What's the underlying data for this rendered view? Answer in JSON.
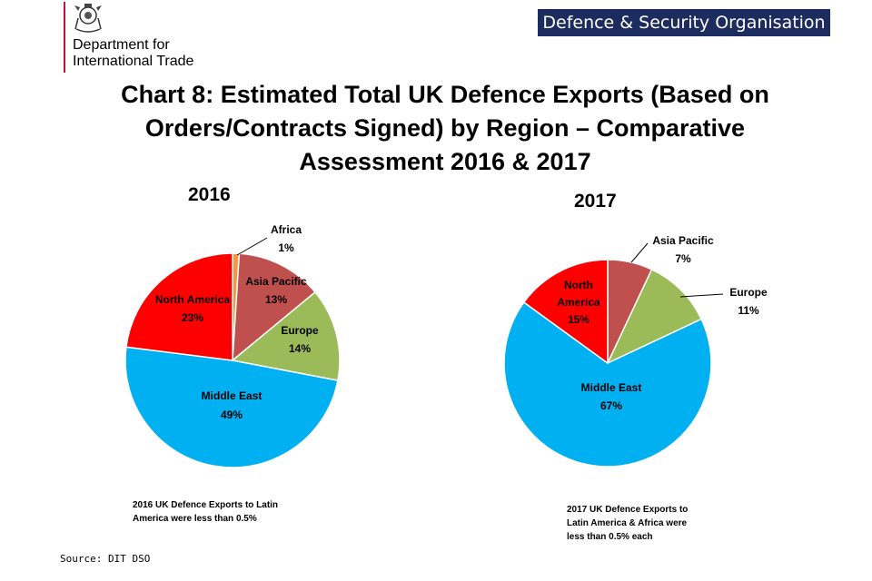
{
  "header": {
    "department": "Department for\nInternational Trade",
    "organisation": "Defence & Security Organisation"
  },
  "title": "Chart 8: Estimated Total UK Defence Exports (Based on Orders/Contracts Signed) by Region – Comparative Assessment 2016 & 2017",
  "source": "Source: DIT DSO",
  "colors": {
    "Africa": "#f79646",
    "Asia Pacific": "#c0504d",
    "Europe": "#9bbb59",
    "Middle East": "#00b0f0",
    "North America": "#ff0000",
    "title_bar": "#1d2c5e",
    "rule": "#c8102e"
  },
  "chart_data": [
    {
      "type": "pie",
      "title": "2016",
      "slices": [
        {
          "label": "Africa",
          "value": 1,
          "display": "1%"
        },
        {
          "label": "Asia Pacific",
          "value": 13,
          "display": "13%"
        },
        {
          "label": "Europe",
          "value": 14,
          "display": "14%"
        },
        {
          "label": "Middle East",
          "value": 49,
          "display": "49%"
        },
        {
          "label": "North America",
          "value": 23,
          "display": "23%"
        }
      ],
      "note": "2016 UK Defence Exports to Latin America were less than 0.5%"
    },
    {
      "type": "pie",
      "title": "2017",
      "slices": [
        {
          "label": "Asia Pacific",
          "value": 7,
          "display": "7%"
        },
        {
          "label": "Europe",
          "value": 11,
          "display": "11%"
        },
        {
          "label": "Middle East",
          "value": 67,
          "display": "67%"
        },
        {
          "label": "North America",
          "value": 15,
          "display": "15%"
        }
      ],
      "note": "2017 UK Defence Exports to Latin America & Africa were less than 0.5% each"
    }
  ]
}
